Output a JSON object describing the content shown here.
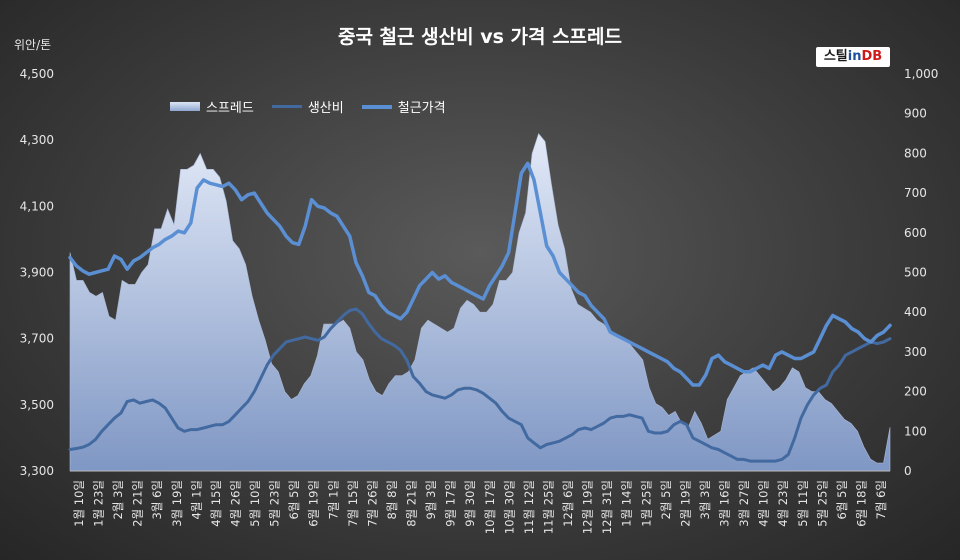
{
  "chart_data": {
    "type": "line",
    "title": "중국 철근 생산비 vs 가격 스프레드",
    "left_axis_unit": "위안/톤",
    "logo": {
      "part1": "스틸",
      "part2": "in",
      "part3": "DB"
    },
    "ylim": [
      3300,
      4500
    ],
    "y2lim": [
      0,
      1000
    ],
    "left_ticks": [
      "3,300",
      "3,500",
      "3,700",
      "3,900",
      "4,100",
      "4,300",
      "4,500"
    ],
    "right_ticks": [
      "0",
      "100",
      "200",
      "300",
      "400",
      "500",
      "600",
      "700",
      "800",
      "900",
      "1,000"
    ],
    "x_labels": [
      "1월 10일",
      "1월 23일",
      "2월 3일",
      "2월 21일",
      "3월 6일",
      "3월 19일",
      "4월 1일",
      "4월 15일",
      "4월 26일",
      "5월 10일",
      "5월 23일",
      "6월 5일",
      "6월 19일",
      "7월 1일",
      "7월 15일",
      "7월 26일",
      "8월 8일",
      "8월 21일",
      "9월 3일",
      "9월 17일",
      "9월 30일",
      "10월 17일",
      "10월 30일",
      "11월 12일",
      "11월 25일",
      "12월 6일",
      "12월 19일",
      "12월 31일",
      "1월 14일",
      "1월 25일",
      "2월 5일",
      "2월 19일",
      "3월 3일",
      "3월 16일",
      "3월 27일",
      "4월 10일",
      "4월 23일",
      "5월 11일",
      "5월 25일",
      "6월 5일",
      "6월 18일",
      "7월 6일"
    ],
    "series": [
      {
        "name": "스프레드",
        "axis": "right",
        "kind": "area",
        "values": [
          550,
          480,
          480,
          450,
          440,
          450,
          390,
          380,
          480,
          470,
          470,
          500,
          520,
          610,
          610,
          660,
          620,
          760,
          760,
          770,
          800,
          760,
          760,
          740,
          680,
          580,
          560,
          520,
          440,
          380,
          330,
          270,
          250,
          200,
          180,
          190,
          220,
          240,
          290,
          370,
          370,
          370,
          380,
          360,
          300,
          280,
          230,
          200,
          190,
          220,
          240,
          240,
          250,
          280,
          360,
          380,
          370,
          360,
          350,
          360,
          410,
          430,
          420,
          400,
          400,
          420,
          480,
          480,
          500,
          600,
          650,
          800,
          850,
          830,
          720,
          620,
          560,
          460,
          420,
          410,
          400,
          380,
          370,
          350,
          340,
          330,
          320,
          300,
          280,
          210,
          170,
          160,
          140,
          150,
          120,
          110,
          150,
          120,
          80,
          90,
          100,
          180,
          210,
          240,
          250,
          260,
          240,
          220,
          200,
          210,
          230,
          260,
          250,
          210,
          200,
          200,
          180,
          170,
          150,
          130,
          120,
          100,
          60,
          30,
          20,
          20,
          110
        ]
      },
      {
        "name": "생산비",
        "axis": "left",
        "kind": "line",
        "values": [
          3365,
          3368,
          3372,
          3380,
          3395,
          3420,
          3440,
          3460,
          3475,
          3510,
          3515,
          3505,
          3510,
          3515,
          3505,
          3490,
          3460,
          3430,
          3420,
          3425,
          3425,
          3430,
          3435,
          3440,
          3440,
          3450,
          3470,
          3490,
          3510,
          3540,
          3580,
          3620,
          3650,
          3670,
          3690,
          3695,
          3700,
          3705,
          3700,
          3695,
          3705,
          3730,
          3750,
          3770,
          3785,
          3790,
          3775,
          3745,
          3720,
          3700,
          3690,
          3680,
          3665,
          3635,
          3585,
          3565,
          3540,
          3530,
          3525,
          3520,
          3530,
          3545,
          3550,
          3550,
          3545,
          3535,
          3520,
          3505,
          3480,
          3460,
          3450,
          3440,
          3400,
          3385,
          3370,
          3380,
          3385,
          3390,
          3400,
          3410,
          3425,
          3430,
          3425,
          3435,
          3445,
          3460,
          3465,
          3465,
          3470,
          3465,
          3460,
          3420,
          3415,
          3415,
          3420,
          3440,
          3450,
          3440,
          3400,
          3390,
          3380,
          3370,
          3365,
          3355,
          3345,
          3335,
          3335,
          3330,
          3330,
          3330,
          3330,
          3330,
          3335,
          3350,
          3400,
          3460,
          3500,
          3530,
          3550,
          3560,
          3600,
          3620,
          3650,
          3660,
          3670,
          3680,
          3690,
          3685,
          3690,
          3700
        ]
      },
      {
        "name": "철근가격",
        "axis": "left",
        "kind": "line",
        "values": [
          3945,
          3920,
          3905,
          3895,
          3900,
          3905,
          3910,
          3950,
          3940,
          3910,
          3935,
          3945,
          3960,
          3975,
          3985,
          4000,
          4010,
          4025,
          4020,
          4050,
          4155,
          4180,
          4170,
          4165,
          4160,
          4170,
          4150,
          4120,
          4135,
          4140,
          4110,
          4080,
          4060,
          4040,
          4010,
          3990,
          3985,
          4040,
          4120,
          4100,
          4095,
          4080,
          4070,
          4040,
          4010,
          3930,
          3890,
          3840,
          3830,
          3800,
          3780,
          3770,
          3760,
          3780,
          3820,
          3860,
          3880,
          3900,
          3880,
          3890,
          3870,
          3860,
          3850,
          3840,
          3830,
          3820,
          3860,
          3890,
          3920,
          3960,
          4080,
          4200,
          4230,
          4180,
          4080,
          3980,
          3950,
          3900,
          3880,
          3860,
          3840,
          3830,
          3800,
          3780,
          3760,
          3720,
          3710,
          3700,
          3690,
          3680,
          3670,
          3660,
          3650,
          3640,
          3630,
          3610,
          3600,
          3580,
          3560,
          3560,
          3590,
          3640,
          3650,
          3630,
          3620,
          3610,
          3600,
          3600,
          3610,
          3620,
          3610,
          3650,
          3660,
          3650,
          3640,
          3640,
          3650,
          3660,
          3700,
          3740,
          3770,
          3760,
          3750,
          3730,
          3720,
          3700,
          3690,
          3710,
          3720,
          3740
        ]
      }
    ]
  }
}
